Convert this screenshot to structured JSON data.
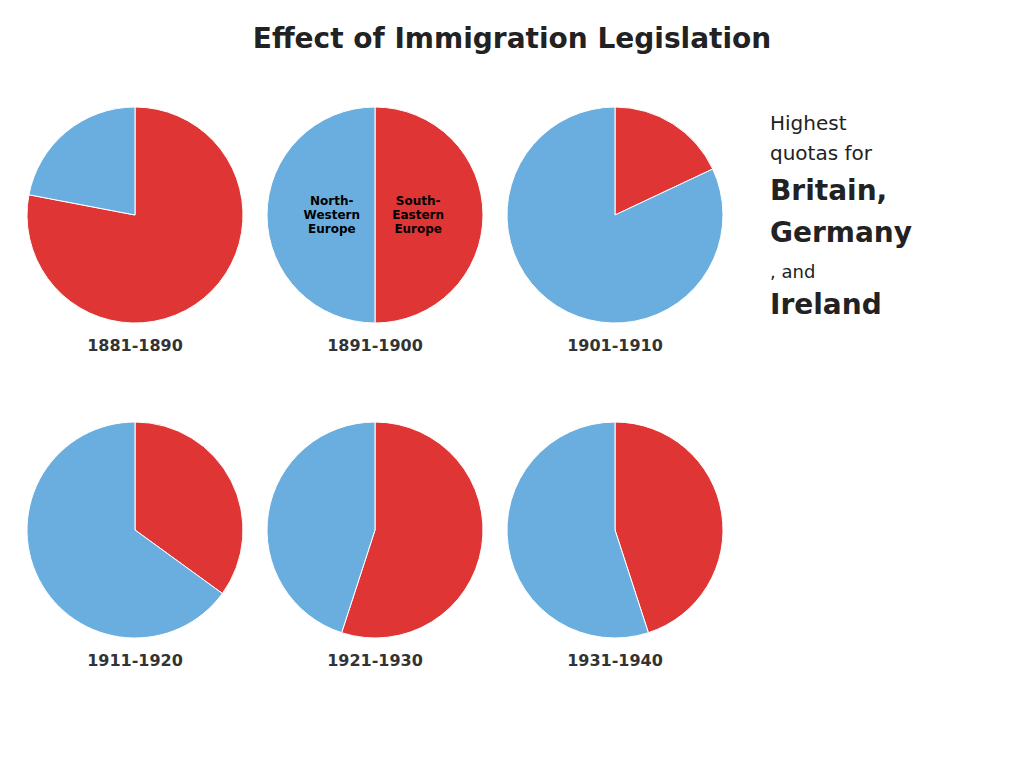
{
  "title": "Effect of Immigration Legislation",
  "annotations": [
    "Highest",
    "quotas for",
    "Britain,",
    "Germany",
    ", and",
    "Ireland"
  ],
  "chart_data": [
    {
      "type": "pie",
      "title": "1881-1890",
      "values": [
        0.78,
        0.22
      ],
      "colors": [
        "#e03535",
        "#6aaee0"
      ]
    },
    {
      "type": "pie",
      "title": "1891-1900",
      "categories": [
        "North-\nWestern\nEurope",
        "South-\nEastern\nEurope"
      ],
      "values": [
        0.5,
        0.5
      ],
      "colors": [
        "#e03535",
        "#6aaee0"
      ]
    },
    {
      "type": "pie",
      "title": "1901-1910",
      "values": [
        0.18,
        0.82
      ],
      "colors": [
        "#e03535",
        "#6aaee0"
      ]
    },
    {
      "type": "pie",
      "title": "1911-1920",
      "values": [
        0.35,
        0.65
      ],
      "colors": [
        "#e03535",
        "#6aaee0"
      ]
    },
    {
      "type": "pie",
      "title": "1921-1930",
      "values": [
        0.55,
        0.45
      ],
      "colors": [
        "#e03535",
        "#6aaee0"
      ]
    },
    {
      "type": "pie",
      "title": "1931-1940",
      "values": [
        0.45,
        0.55
      ],
      "colors": [
        "#e03535",
        "#6aaee0"
      ]
    }
  ]
}
